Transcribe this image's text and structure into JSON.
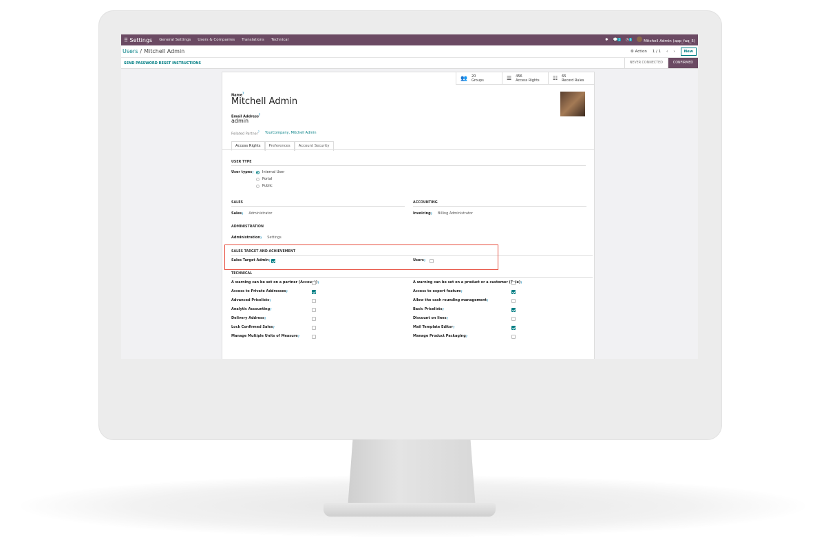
{
  "navbar": {
    "app": "Settings",
    "menus": [
      "General Settings",
      "Users & Companies",
      "Translations",
      "Technical"
    ],
    "chat_badge": "5",
    "activity_badge": "6",
    "user": "Mitchell Admin (app_faq_5)"
  },
  "breadcrumb": {
    "parent": "Users",
    "sep": "/",
    "current": "Mitchell Admin"
  },
  "controls": {
    "action": "⚙ Action",
    "pager": "1 / 1",
    "prev": "‹",
    "next": "›",
    "new": "New"
  },
  "statusbar": {
    "reset": "SEND PASSWORD RESET INSTRUCTIONS",
    "stages": [
      "NEVER CONNECTED",
      "CONFIRMED"
    ],
    "active_stage": "CONFIRMED"
  },
  "stats": [
    {
      "value": "20",
      "label": "Groups",
      "icon": "users-icon"
    },
    {
      "value": "456",
      "label": "Access Rights",
      "icon": "list-icon"
    },
    {
      "value": "65",
      "label": "Record Rules",
      "icon": "list-ul-icon"
    }
  ],
  "form": {
    "name_label": "Name",
    "name": "Mitchell Admin",
    "email_label": "Email Address",
    "email": "admin",
    "partner_label": "Related Partner",
    "partner": "YourCompany, Mitchell Admin"
  },
  "tabs": [
    "Access Rights",
    "Preferences",
    "Account Security"
  ],
  "user_type": {
    "section": "USER TYPE",
    "label": "User types",
    "options": [
      "Internal User",
      "Portal",
      "Public"
    ],
    "selected": "Internal User"
  },
  "sales": {
    "section": "SALES",
    "label": "Sales",
    "value": "Administrator"
  },
  "accounting": {
    "section": "ACCOUNTING",
    "label": "Invoicing",
    "value": "Billing Administrator"
  },
  "administration": {
    "section": "ADMINISTRATION",
    "label": "Administration",
    "value": "Settings"
  },
  "target": {
    "section": "SALES TARGET AND ACHIEVEMENT",
    "left": {
      "label": "Sales Target Admin",
      "checked": true
    },
    "right": {
      "label": "Users",
      "checked": false
    },
    "highlight_color": "#e74c3c"
  },
  "technical": {
    "section": "TECHNICAL",
    "left": [
      {
        "label": "A warning can be set on a partner (Account)",
        "checked": false
      },
      {
        "label": "Access to Private Addresses",
        "checked": true
      },
      {
        "label": "Advanced Pricelists",
        "checked": false
      },
      {
        "label": "Analytic Accounting",
        "checked": false
      },
      {
        "label": "Delivery Address",
        "checked": false
      },
      {
        "label": "Lock Confirmed Sales",
        "checked": false
      },
      {
        "label": "Manage Multiple Units of Measure",
        "checked": false
      }
    ],
    "right": [
      {
        "label": "A warning can be set on a product or a customer (Sale)",
        "checked": false
      },
      {
        "label": "Access to export feature",
        "checked": true
      },
      {
        "label": "Allow the cash rounding management",
        "checked": false
      },
      {
        "label": "Basic Pricelists",
        "checked": true
      },
      {
        "label": "Discount on lines",
        "checked": false
      },
      {
        "label": "Mail Template Editor",
        "checked": true
      },
      {
        "label": "Manage Product Packaging",
        "checked": false
      }
    ]
  },
  "colors": {
    "brand": "#6b4a63",
    "accent": "#017e84"
  }
}
